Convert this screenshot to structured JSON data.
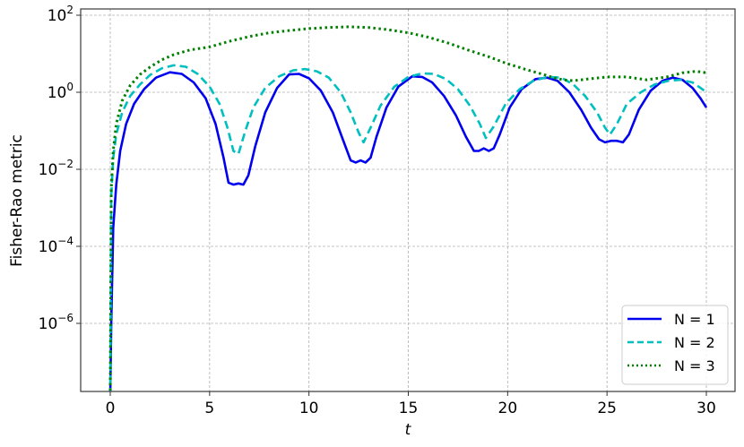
{
  "chart_data": {
    "type": "line",
    "title": "",
    "xlabel": "t",
    "ylabel": "Fisher-Rao metric",
    "xscale": "linear",
    "yscale": "log",
    "xlim": [
      -1.5,
      31.5
    ],
    "ylim_log10": [
      -7.8,
      2.35
    ],
    "xticks": [
      0,
      5,
      10,
      15,
      20,
      25,
      30
    ],
    "xtick_labels": [
      "0",
      "5",
      "10",
      "15",
      "20",
      "25",
      "30"
    ],
    "yticks_log10": [
      2,
      0,
      -2,
      -4,
      -6
    ],
    "ytick_labels": [
      {
        "base": "10",
        "exp": "2"
      },
      {
        "base": "10",
        "exp": "0"
      },
      {
        "base": "10",
        "exp": "−2"
      },
      {
        "base": "10",
        "exp": "−4"
      },
      {
        "base": "10",
        "exp": "−6"
      }
    ],
    "grid": true,
    "legend_position": "lower right",
    "series": [
      {
        "name": "N = 1",
        "color": "#0000ee",
        "style": "solid",
        "x": [
          0,
          0.05,
          0.15,
          0.3,
          0.5,
          0.8,
          1.2,
          1.7,
          2.3,
          3.0,
          3.6,
          4.2,
          4.8,
          5.3,
          5.7,
          5.95,
          6.2,
          6.45,
          6.7,
          6.95,
          7.3,
          7.8,
          8.4,
          9.0,
          9.5,
          10.0,
          10.6,
          11.2,
          11.7,
          12.1,
          12.35,
          12.6,
          12.85,
          13.1,
          13.4,
          13.9,
          14.5,
          15.2,
          15.7,
          16.2,
          16.8,
          17.4,
          17.9,
          18.3,
          18.55,
          18.8,
          19.05,
          19.3,
          19.6,
          20.1,
          20.7,
          21.4,
          22.0,
          22.5,
          23.1,
          23.7,
          24.2,
          24.6,
          24.9,
          25.2,
          25.5,
          25.8,
          26.1,
          26.6,
          27.2,
          27.8,
          28.3,
          28.8,
          29.3,
          29.7,
          30.0
        ],
        "y": [
          1e-08,
          1e-06,
          0.0003,
          0.004,
          0.03,
          0.15,
          0.5,
          1.2,
          2.4,
          3.3,
          3.0,
          1.8,
          0.7,
          0.15,
          0.02,
          0.0045,
          0.004,
          0.0043,
          0.004,
          0.007,
          0.04,
          0.3,
          1.3,
          2.9,
          3.0,
          2.3,
          1.1,
          0.3,
          0.06,
          0.017,
          0.015,
          0.017,
          0.015,
          0.02,
          0.07,
          0.4,
          1.4,
          2.6,
          2.5,
          1.8,
          0.8,
          0.25,
          0.07,
          0.03,
          0.03,
          0.035,
          0.03,
          0.035,
          0.08,
          0.4,
          1.2,
          2.2,
          2.4,
          2.0,
          1.0,
          0.35,
          0.12,
          0.06,
          0.05,
          0.055,
          0.055,
          0.05,
          0.08,
          0.35,
          1.1,
          2.0,
          2.4,
          2.1,
          1.3,
          0.7,
          0.4
        ]
      },
      {
        "name": "N = 2",
        "color": "#00bfbf",
        "style": "dashed",
        "x": [
          0,
          0.05,
          0.15,
          0.3,
          0.6,
          1.0,
          1.5,
          2.0,
          2.6,
          3.2,
          3.8,
          4.4,
          5.0,
          5.5,
          5.9,
          6.2,
          6.45,
          6.8,
          7.2,
          7.8,
          8.5,
          9.2,
          9.8,
          10.4,
          11.0,
          11.6,
          12.1,
          12.5,
          12.75,
          13.1,
          13.6,
          14.3,
          15.0,
          15.7,
          16.3,
          16.9,
          17.5,
          18.1,
          18.6,
          18.9,
          19.3,
          19.9,
          20.6,
          21.3,
          22.0,
          22.7,
          23.3,
          23.9,
          24.5,
          24.9,
          25.15,
          25.5,
          26.0,
          26.7,
          27.4,
          28.1,
          28.7,
          29.3,
          29.7,
          30.0
        ],
        "y": [
          1e-08,
          0.002,
          0.02,
          0.08,
          0.3,
          0.8,
          1.6,
          2.8,
          4.2,
          5.0,
          4.6,
          3.0,
          1.4,
          0.5,
          0.12,
          0.03,
          0.025,
          0.1,
          0.4,
          1.3,
          2.6,
          3.7,
          4.0,
          3.5,
          2.4,
          1.0,
          0.3,
          0.09,
          0.05,
          0.12,
          0.45,
          1.4,
          2.5,
          3.1,
          3.0,
          2.2,
          1.2,
          0.45,
          0.15,
          0.065,
          0.13,
          0.5,
          1.2,
          2.0,
          2.5,
          2.4,
          1.6,
          0.8,
          0.3,
          0.12,
          0.08,
          0.15,
          0.5,
          1.0,
          1.6,
          2.0,
          2.1,
          1.8,
          1.3,
          1.0
        ]
      },
      {
        "name": "N = 3",
        "color": "#008000",
        "style": "dotted",
        "x": [
          0,
          0.05,
          0.15,
          0.3,
          0.6,
          1.0,
          1.5,
          2.0,
          2.6,
          3.2,
          4.0,
          5.0,
          6.0,
          7.0,
          8.0,
          9.0,
          10.0,
          11.0,
          12.0,
          13.0,
          14.0,
          15.0,
          16.0,
          17.0,
          18.0,
          19.0,
          20.0,
          21.0,
          21.8,
          22.3,
          22.8,
          23.3,
          24.0,
          25.0,
          26.0,
          27.0,
          28.0,
          28.8,
          29.5,
          30.0
        ],
        "y": [
          1e-08,
          0.003,
          0.03,
          0.15,
          0.6,
          1.5,
          2.9,
          4.5,
          7.0,
          9.5,
          12.5,
          15.0,
          21.0,
          28.0,
          35.0,
          40.0,
          45.0,
          48.0,
          50.0,
          48.0,
          42.0,
          35.0,
          27.0,
          19.0,
          12.5,
          8.5,
          5.5,
          3.8,
          2.9,
          2.4,
          2.1,
          2.0,
          2.2,
          2.5,
          2.5,
          2.1,
          2.5,
          3.2,
          3.5,
          3.2
        ]
      }
    ]
  },
  "legend": {
    "items": [
      {
        "label": "N = 1",
        "color": "#0000ee",
        "dash": ""
      },
      {
        "label": "N = 2",
        "color": "#00bfbf",
        "dash": "7,4"
      },
      {
        "label": "N = 3",
        "color": "#008000",
        "dash": "2,3"
      }
    ]
  },
  "axes": {
    "xlabel": "t",
    "ylabel": "Fisher-Rao metric"
  }
}
